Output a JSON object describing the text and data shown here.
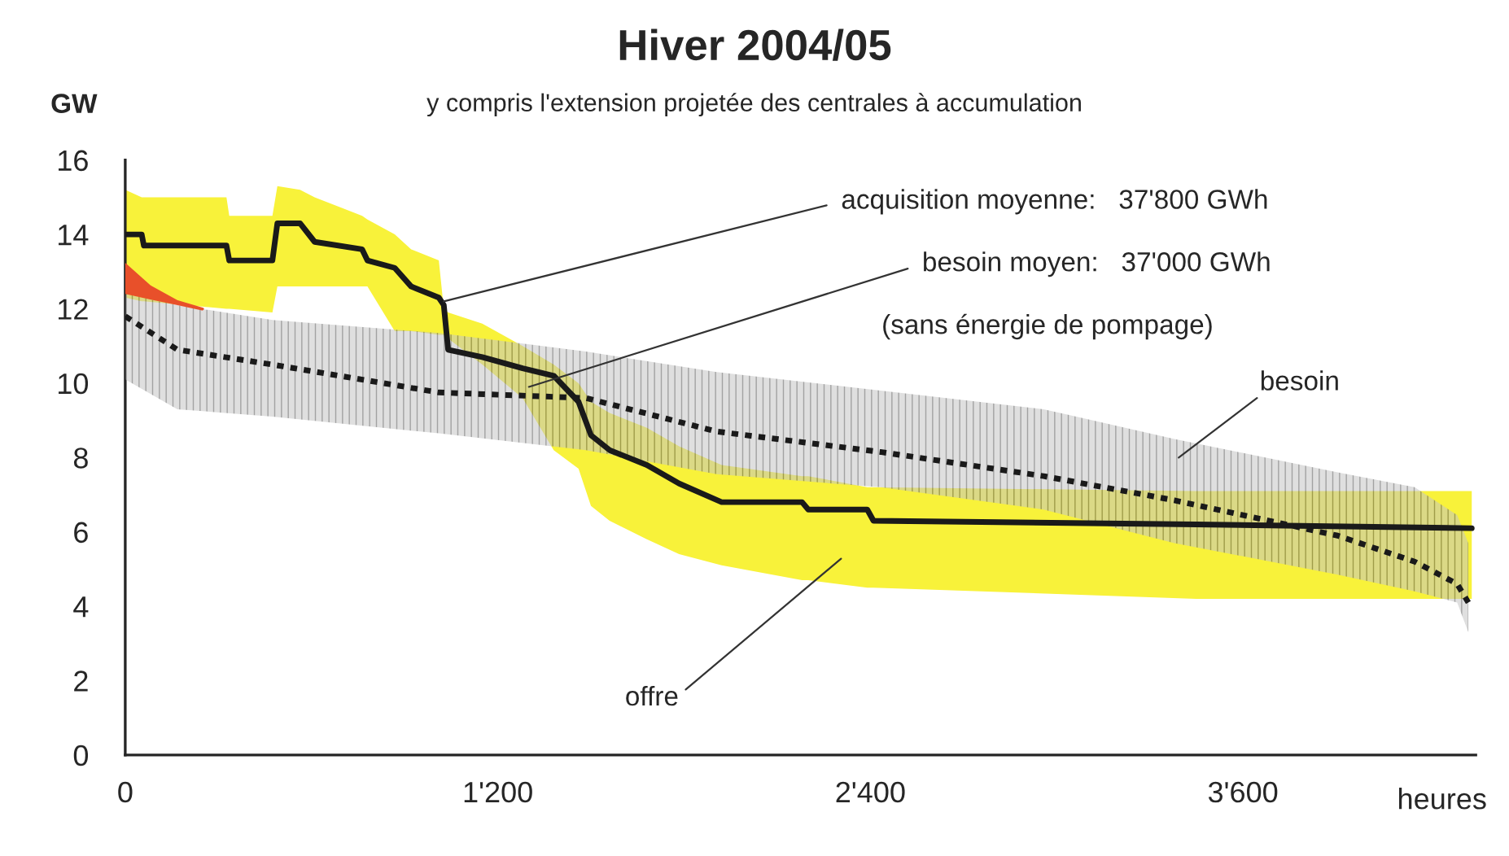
{
  "chart_data": {
    "type": "line",
    "title": "Hiver 2004/05",
    "subtitle": "y compris l'extension projetée des centrales à accumulation",
    "xlabel": "heures",
    "ylabel": "GW",
    "xlim": [
      0,
      4350
    ],
    "xticks": [
      0,
      {
        "value": 1200,
        "label": "1'200"
      },
      {
        "value": 2400,
        "label": "2'400"
      },
      {
        "value": 3600,
        "label": "3'600"
      }
    ],
    "ylim": [
      0,
      16
    ],
    "yticks": [
      0,
      2,
      4,
      6,
      8,
      10,
      12,
      14,
      16
    ],
    "grid": false,
    "legend": false,
    "series": [
      {
        "color": "#1a1a1a",
        "line_style": "solid",
        "x": [
          0,
          53,
          60,
          326,
          335,
          474,
          490,
          563,
          610,
          763,
          780,
          868,
          921,
          1010,
          1026,
          1040,
          1150,
          1280,
          1380,
          1460,
          1500,
          1560,
          1680,
          1784,
          1921,
          2180,
          2200,
          2390,
          2410,
          3450,
          4337
        ],
        "values": [
          14.0,
          14.0,
          13.7,
          13.7,
          13.3,
          13.3,
          14.3,
          14.3,
          13.8,
          13.6,
          13.3,
          13.1,
          12.6,
          12.3,
          12.1,
          10.9,
          10.7,
          10.4,
          10.2,
          9.5,
          8.6,
          8.2,
          7.8,
          7.3,
          6.8,
          6.8,
          6.6,
          6.6,
          6.3,
          6.2,
          6.1
        ],
        "upper": [
          15.2,
          15.0,
          15.0,
          15.0,
          14.5,
          14.5,
          15.3,
          15.2,
          15.0,
          14.5,
          14.4,
          14.0,
          13.6,
          13.3,
          12.0,
          11.9,
          11.6,
          11.0,
          10.5,
          10.0,
          9.5,
          9.2,
          8.8,
          8.3,
          7.8,
          7.5,
          7.5,
          7.2,
          7.2,
          7.1,
          7.1
        ],
        "lower": [
          12.3,
          12.2,
          12.2,
          12.0,
          12.0,
          11.9,
          12.6,
          12.6,
          12.6,
          12.6,
          12.6,
          11.4,
          11.4,
          11.3,
          11.3,
          11.2,
          10.5,
          9.6,
          8.2,
          7.7,
          6.7,
          6.3,
          5.8,
          5.4,
          5.1,
          4.7,
          4.7,
          4.5,
          4.5,
          4.2,
          4.2
        ]
      },
      {
        "color": "#1a1a1a",
        "line_style": "dotted",
        "x": [
          0,
          168,
          474,
          1010,
          1484,
          1905,
          2432,
          2958,
          3379,
          3905,
          4153,
          4290,
          4326
        ],
        "values": [
          11.8,
          10.9,
          10.5,
          9.75,
          9.6,
          8.7,
          8.15,
          7.5,
          6.85,
          5.9,
          5.2,
          4.6,
          4.1
        ],
        "upper": [
          12.4,
          12.1,
          11.7,
          11.35,
          10.85,
          10.3,
          9.8,
          9.3,
          8.5,
          7.6,
          7.2,
          6.45,
          5.7
        ],
        "lower": [
          10.1,
          9.3,
          9.1,
          8.65,
          8.2,
          7.55,
          7.2,
          6.6,
          5.7,
          4.85,
          4.4,
          4.1,
          3.3
        ]
      },
      {
        "color": "#e8502a",
        "line_style": "solid",
        "x": [
          0,
          80,
          168,
          250
        ],
        "values": [
          13.2,
          12.6,
          12.2,
          12.0
        ],
        "upper": [
          13.2,
          12.6,
          12.2,
          12.0
        ],
        "lower": [
          12.4,
          12.25,
          12.1,
          11.95
        ]
      }
    ],
    "annotations": [
      {
        "text": "acquisition moyenne:   37'800 GWh",
        "x": 1026,
        "y": 12.2
      },
      {
        "text": "besoin moyen:   37'000 GWh",
        "x": 1300,
        "y": 9.9
      },
      "(sans énergie de pompage)",
      "besoin",
      "offre"
    ]
  }
}
